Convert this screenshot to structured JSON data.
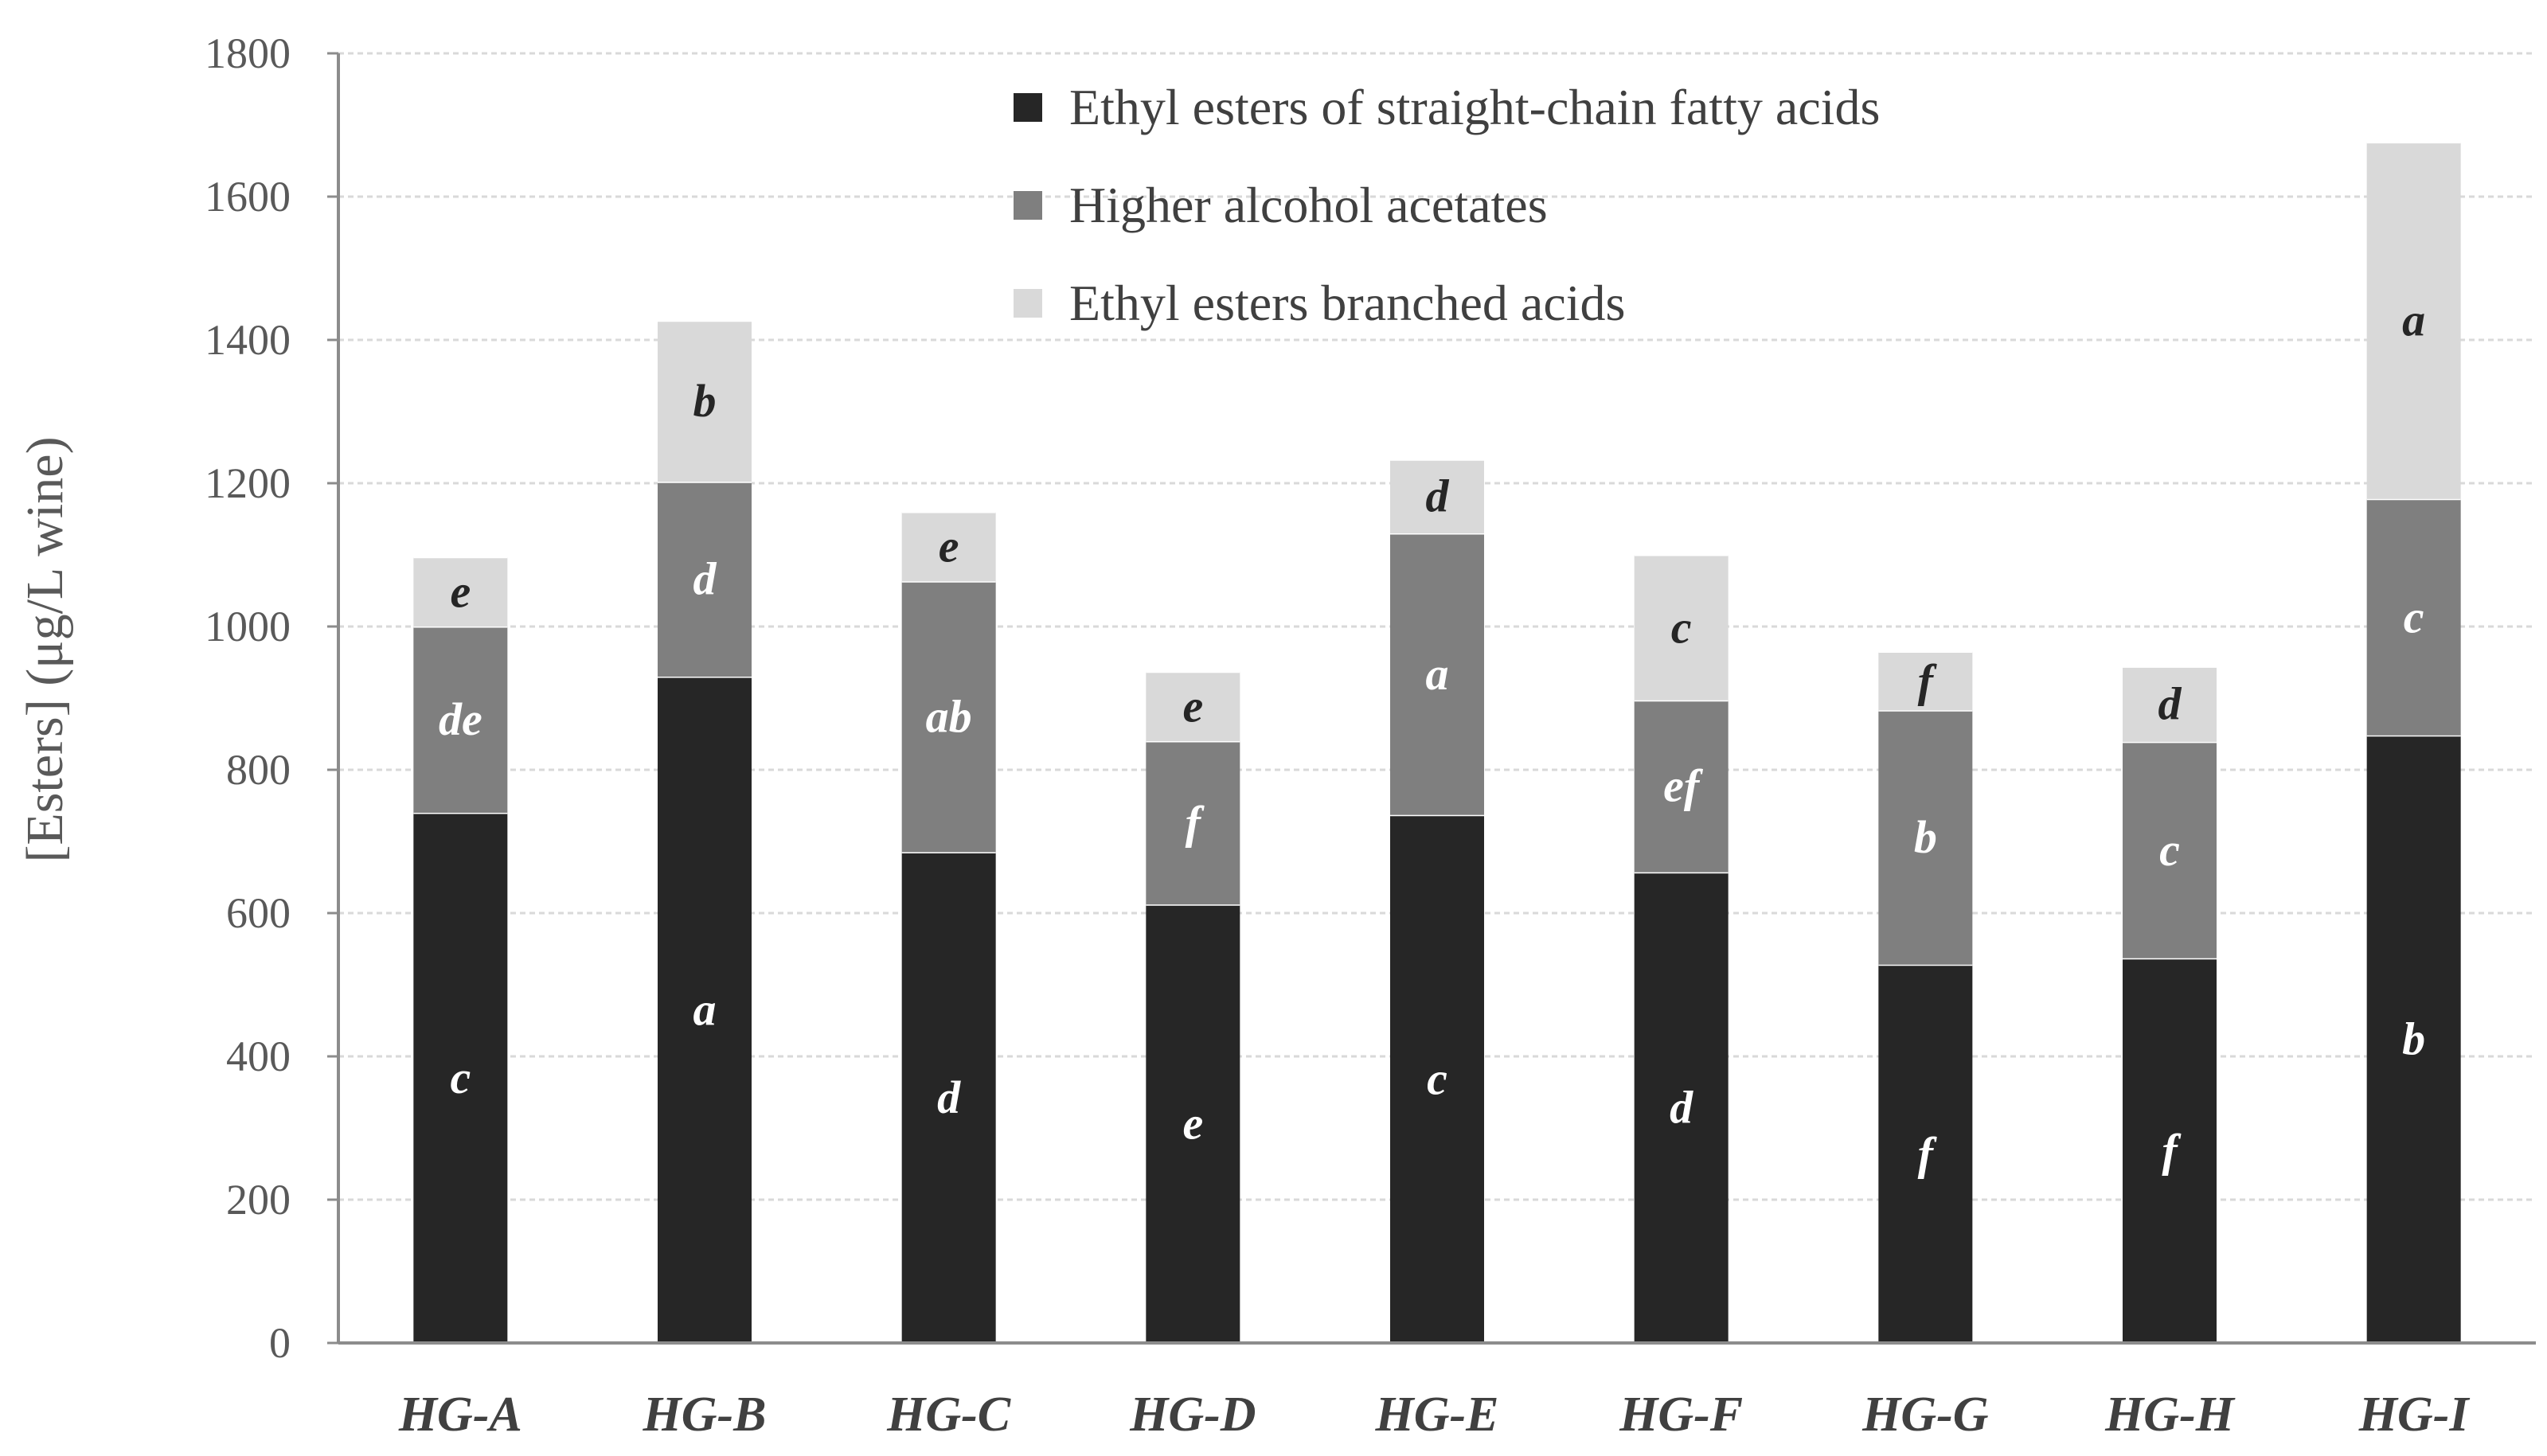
{
  "chart_data": {
    "type": "bar",
    "stacked": true,
    "title": "",
    "xlabel": "",
    "ylabel": "[Esters] (μg/L wine)",
    "ylim": [
      0,
      1800
    ],
    "yticks": [
      0,
      200,
      400,
      600,
      800,
      1000,
      1200,
      1400,
      1600,
      1800
    ],
    "grid": true,
    "legend_position": "top-right",
    "categories": [
      "HG-A",
      "HG-B",
      "HG-C",
      "HG-D",
      "HG-E",
      "HG-F",
      "HG-G",
      "HG-H",
      "HG-I"
    ],
    "series": [
      {
        "name": "Ethyl esters of straight-chain fatty acids",
        "color": "#262626",
        "label_color": "#ffffff",
        "values": [
          740,
          930,
          685,
          612,
          737,
          657,
          528,
          537,
          848
        ],
        "letters": [
          "c",
          "a",
          "d",
          "e",
          "c",
          "d",
          "f",
          "f",
          "b"
        ]
      },
      {
        "name": "Higher alcohol acetates",
        "color": "#7f7f7f",
        "label_color": "#ffffff",
        "values": [
          260,
          272,
          378,
          228,
          393,
          240,
          355,
          302,
          330
        ],
        "letters": [
          "de",
          "d",
          "ab",
          "f",
          "a",
          "ef",
          "b",
          "c",
          "c"
        ]
      },
      {
        "name": "Ethyl esters branched acids",
        "color": "#d9d9d9",
        "label_color": "#262626",
        "values": [
          97,
          225,
          97,
          97,
          103,
          203,
          82,
          105,
          498
        ],
        "letters": [
          "e",
          "b",
          "e",
          "e",
          "d",
          "c",
          "f",
          "d",
          "a"
        ]
      }
    ]
  }
}
